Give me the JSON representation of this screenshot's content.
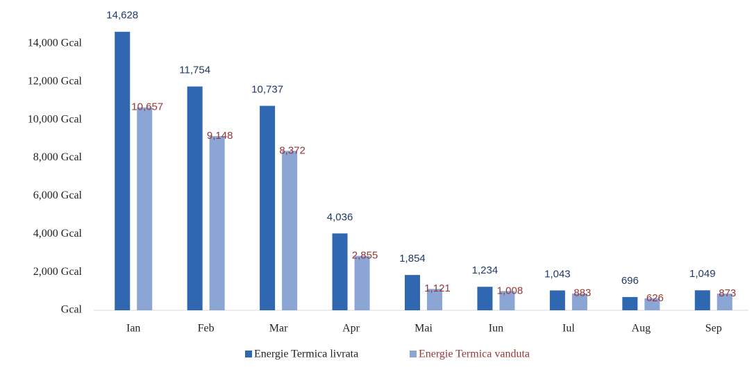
{
  "chart_data": {
    "type": "bar",
    "categories": [
      "Ian",
      "Feb",
      "Mar",
      "Apr",
      "Mai",
      "Iun",
      "Iul",
      "Aug",
      "Sep"
    ],
    "series": [
      {
        "name": "Energie Termica livrata",
        "color": "#2f67b1",
        "label_color": "#1f3864",
        "values": [
          14628,
          11754,
          10737,
          4036,
          1854,
          1234,
          1043,
          696,
          1049
        ],
        "value_labels": [
          "14,628",
          "11,754",
          "10,737",
          "4,036",
          "1,854",
          "1,234",
          "1,043",
          "696",
          "1,049"
        ]
      },
      {
        "name": "Energie Termica vanduta",
        "color": "#8ba6d4",
        "label_color": "#953735",
        "values": [
          10657,
          9148,
          8372,
          2855,
          1121,
          1008,
          883,
          626,
          873
        ],
        "value_labels": [
          "10,657",
          "9,148",
          "8,372",
          "2,855",
          "1,121",
          "1,008",
          "883",
          "626",
          "873"
        ]
      }
    ],
    "ylim": [
      0,
      14000
    ],
    "yticks": [
      {
        "value": 0,
        "label": "Gcal"
      },
      {
        "value": 2000,
        "label": "2,000  Gcal"
      },
      {
        "value": 4000,
        "label": "4,000  Gcal"
      },
      {
        "value": 6000,
        "label": "6,000  Gcal"
      },
      {
        "value": 8000,
        "label": "8,000  Gcal"
      },
      {
        "value": 10000,
        "label": "10,000  Gcal"
      },
      {
        "value": 12000,
        "label": "12,000  Gcal"
      },
      {
        "value": 14000,
        "label": "14,000  Gcal"
      }
    ],
    "legend": "bottom"
  }
}
